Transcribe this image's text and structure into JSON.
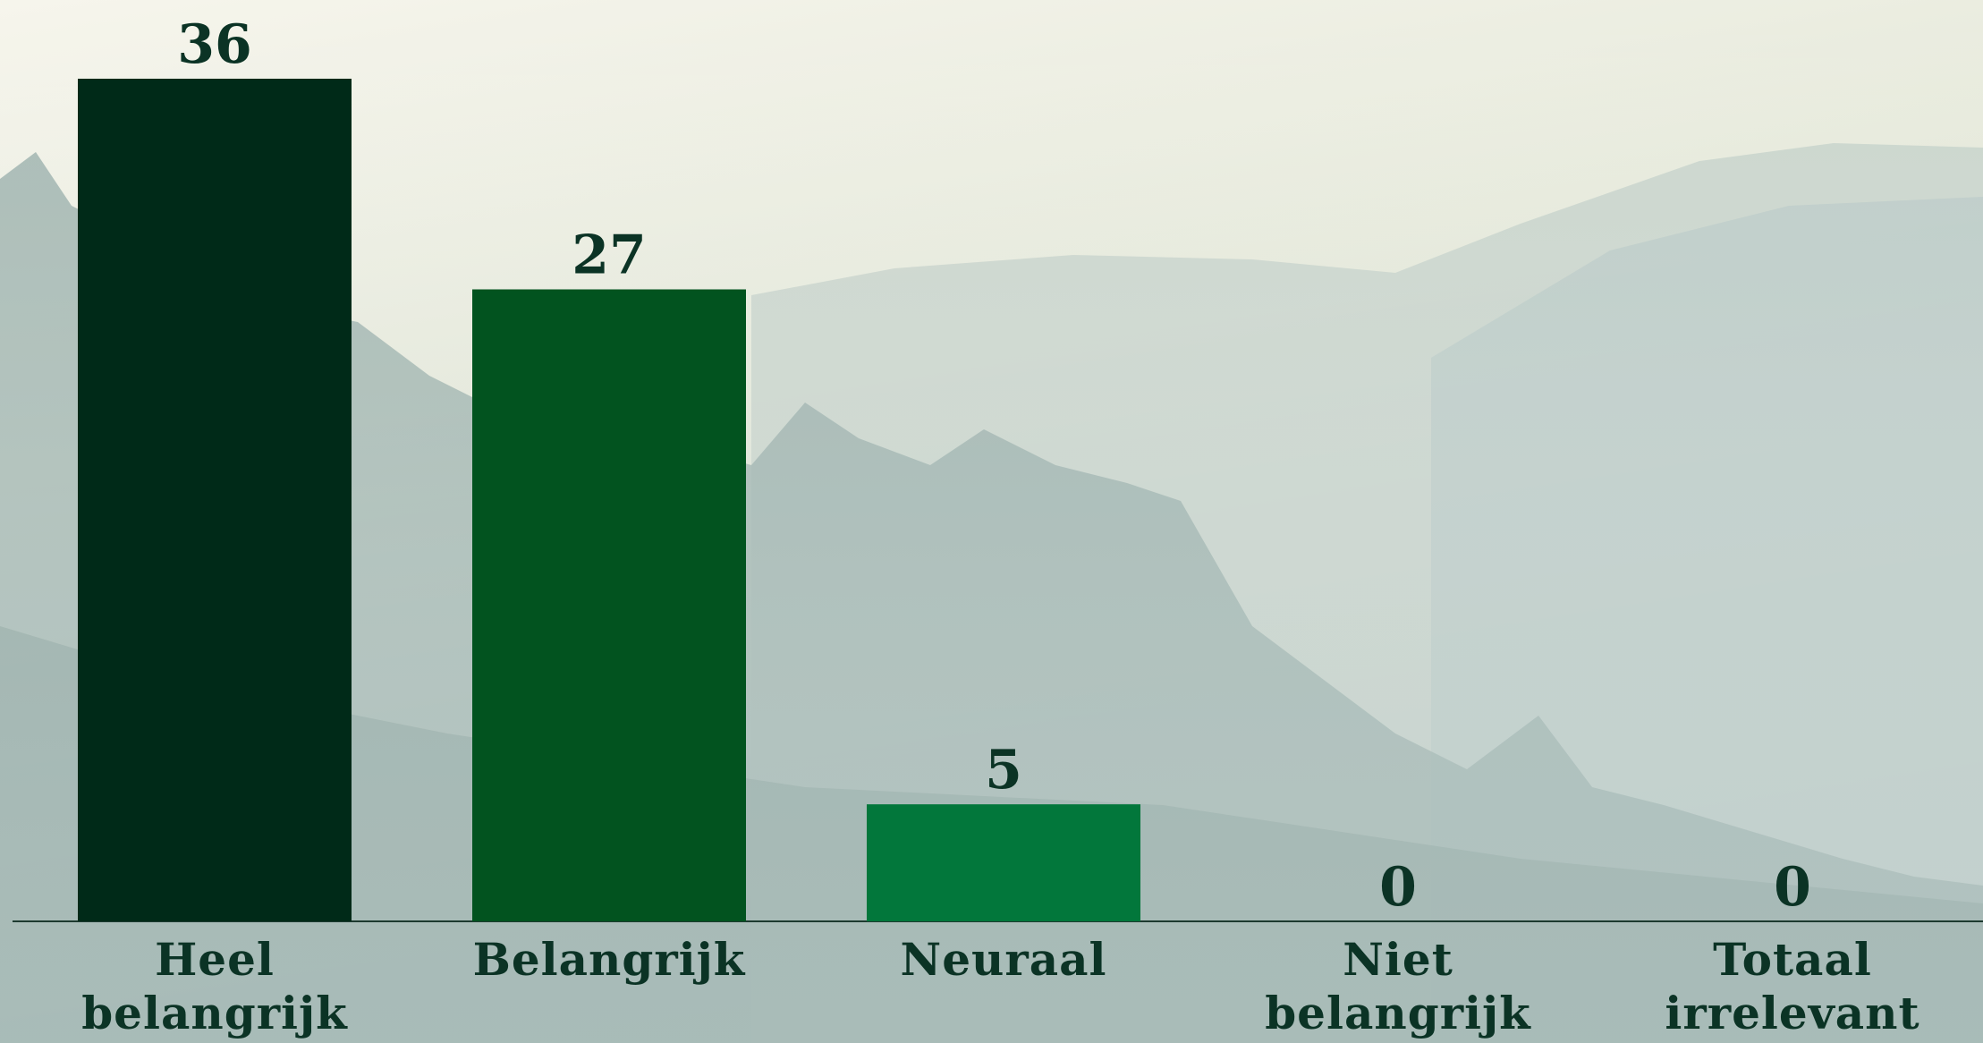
{
  "chart_data": {
    "type": "bar",
    "categories": [
      "Heel belangrijk",
      "Belangrijk",
      "Neuraal",
      "Niet belangrijk",
      "Totaal irrelevant"
    ],
    "values": [
      36,
      27,
      5,
      0,
      0
    ],
    "colors": [
      "#002a18",
      "#02531f",
      "#02773b",
      "#2e9e5a",
      "#5fb884"
    ]
  }
}
